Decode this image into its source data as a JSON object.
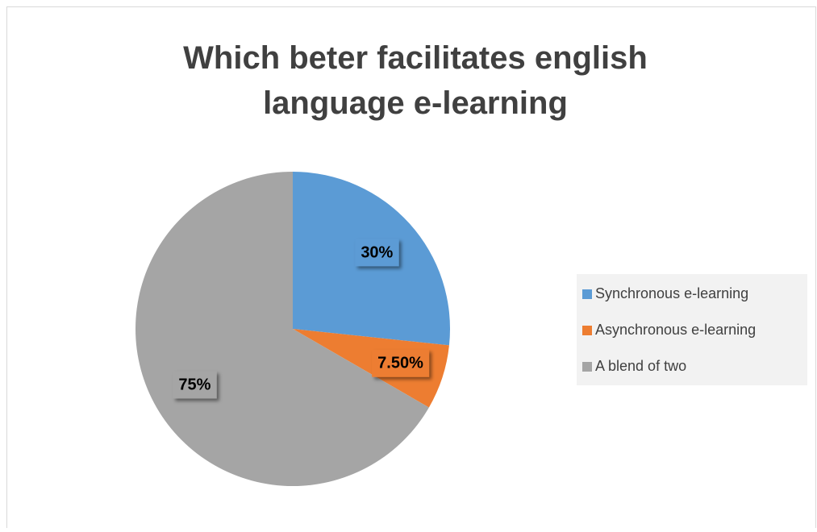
{
  "chart_data": {
    "type": "pie",
    "title": "Which beter facilitates english language e-learning",
    "categories": [
      "Synchronous e-learning",
      "Asynchronous e-learning",
      "A blend of two"
    ],
    "values": [
      30,
      7.5,
      75
    ],
    "value_labels": [
      "30%",
      "7.50%",
      "75%"
    ],
    "colors": [
      "#5b9bd5",
      "#ed7d31",
      "#a5a5a5"
    ],
    "legend": "right"
  }
}
